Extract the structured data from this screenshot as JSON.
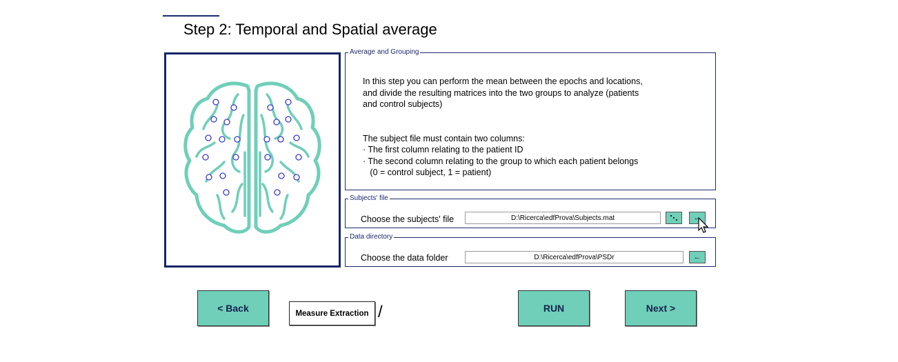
{
  "header": {
    "title": "Step 2: Temporal and Spatial average"
  },
  "average_grouping": {
    "legend": "Average and Grouping",
    "description": "In this step you can perform the mean between the epochs and locations,\nand divide the resulting matrices into the two groups to analyze (patients\nand control subjects)\n\n\nThe subject file must contain two columns:\n· The first column relating to the patient ID\n· The second column relating to the group to which each patient belongs\n   (0 = control subject, 1 = patient)"
  },
  "subjects_file": {
    "legend": "Subjects' file",
    "label": "Choose the subjects' file",
    "path": "D:\\Ricerca\\edfProva\\Subjects.mat",
    "icon_a": "dots-icon",
    "icon_b": "←"
  },
  "data_directory": {
    "legend": "Data directory",
    "label": "Choose the data folder",
    "path": "D:\\Ricerca\\edfProva\\PSDr",
    "icon": "←"
  },
  "nav": {
    "back_label": "< Back",
    "measure_label": "Measure Extraction",
    "separator": "/",
    "run_label": "RUN",
    "next_label": "Next >"
  },
  "colors": {
    "accent": "#6fcfb8",
    "frame": "#142466",
    "brain": "#6fcfb8",
    "electrode": "#3a3ad0"
  }
}
